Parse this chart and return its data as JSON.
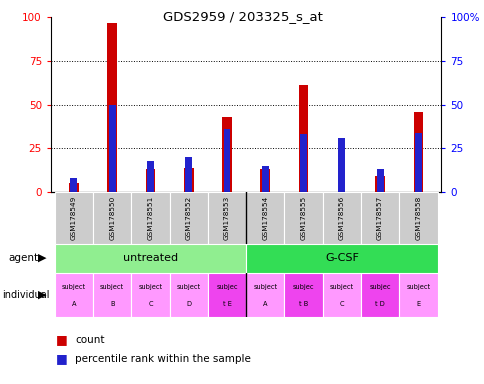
{
  "title": "GDS2959 / 203325_s_at",
  "samples": [
    "GSM178549",
    "GSM178550",
    "GSM178551",
    "GSM178552",
    "GSM178553",
    "GSM178554",
    "GSM178555",
    "GSM178556",
    "GSM178557",
    "GSM178558"
  ],
  "count_values": [
    5,
    97,
    13,
    14,
    43,
    13,
    61,
    0,
    9,
    46
  ],
  "percentile_values": [
    8,
    50,
    18,
    20,
    36,
    15,
    33,
    31,
    13,
    34
  ],
  "individual_highlight": [
    4,
    6,
    8
  ],
  "individual_color_normal": "#FF99FF",
  "individual_color_highlight": "#EE44EE",
  "bar_color_red": "#CC0000",
  "bar_color_blue": "#2222CC",
  "red_bar_width": 0.25,
  "blue_bar_width": 0.18,
  "ylim": [
    0,
    100
  ],
  "yticks": [
    0,
    25,
    50,
    75,
    100
  ],
  "untreated_color": "#90EE90",
  "gcsf_color": "#33DD55",
  "xlabel_area_color": "#CCCCCC",
  "legend_count_color": "#CC0000",
  "legend_pct_color": "#2222CC",
  "ind_labels_top": [
    "subject",
    "subject",
    "subject",
    "subject",
    "subjec",
    "subject",
    "subjec",
    "subject",
    "subjec",
    "subject"
  ],
  "ind_labels_bot": [
    "A",
    "B",
    "C",
    "D",
    "t E",
    "A",
    "t B",
    "C",
    "t D",
    "E"
  ]
}
